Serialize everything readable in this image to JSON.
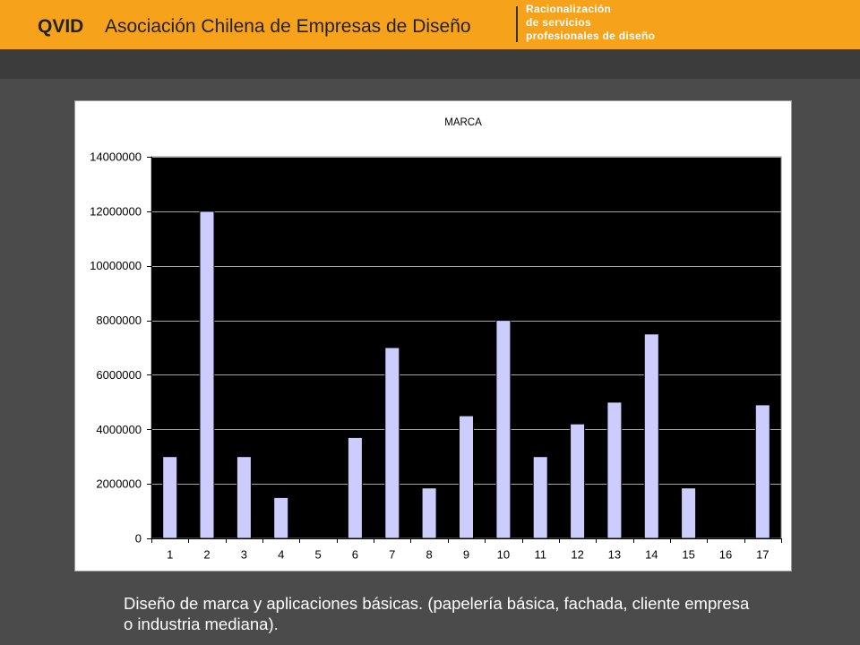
{
  "header": {
    "brand": "QVID",
    "organization": "Asociación Chilena de Empresas de Diseño",
    "tagline": [
      "Racionalización",
      "de servicios",
      "profesionales de diseño"
    ]
  },
  "colors": {
    "header_bg": "#F6A21B",
    "header_text": "#222222",
    "divider": "#333333",
    "tagline_text": "#FFFFFF",
    "band_bg": "#3C3C3C",
    "slide_bg": "#4B4B4B",
    "panel_bg": "#FFFFFF",
    "plot_bg": "#000000",
    "gridline": "#A6A6A6",
    "bar_fill": "#CCCCFF",
    "caption_text": "#FFFFFF"
  },
  "chart_data": {
    "type": "bar",
    "title": "MARCA",
    "categories": [
      "1",
      "2",
      "3",
      "4",
      "5",
      "6",
      "7",
      "8",
      "9",
      "10",
      "11",
      "12",
      "13",
      "14",
      "15",
      "16",
      "17"
    ],
    "values": [
      3000000,
      12000000,
      3000000,
      1500000,
      0,
      3700000,
      7000000,
      1850000,
      4500000,
      8000000,
      3000000,
      4200000,
      5000000,
      7500000,
      1850000,
      0,
      4900000
    ],
    "ylim": [
      0,
      14000000
    ],
    "yticks": [
      0,
      2000000,
      4000000,
      6000000,
      8000000,
      10000000,
      12000000,
      14000000
    ],
    "grid": true,
    "legend": "none"
  },
  "caption": {
    "lines": [
      "Diseño de marca y aplicaciones básicas. (papelería básica, fachada, cliente empresa",
      "o industria mediana)."
    ]
  }
}
